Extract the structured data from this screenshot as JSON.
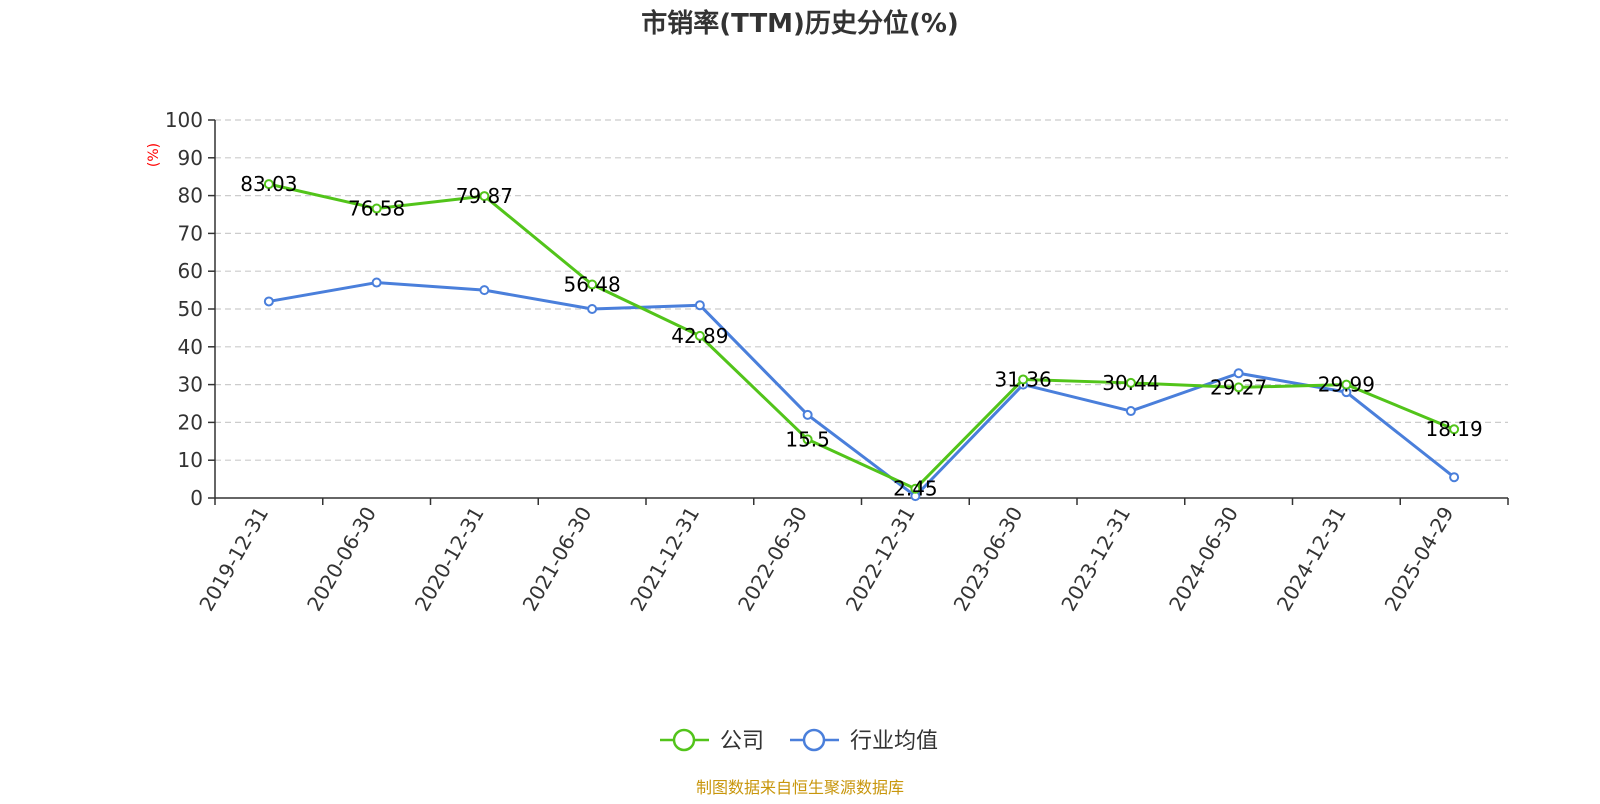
{
  "chart_data": {
    "type": "line",
    "title": "市销率(TTM)历史分位(%)",
    "ylabel": "(%)",
    "ylim": [
      0,
      100
    ],
    "y_ticks": [
      "0",
      "10",
      "20",
      "30",
      "40",
      "50",
      "60",
      "70",
      "80",
      "90",
      "100"
    ],
    "categories": [
      "2019-12-31",
      "2020-06-30",
      "2020-12-31",
      "2021-06-30",
      "2021-12-31",
      "2022-06-30",
      "2022-12-31",
      "2023-06-30",
      "2023-12-31",
      "2024-06-30",
      "2024-12-31",
      "2025-04-29"
    ],
    "grid": "horizontal dashed",
    "legend_position": "bottom-center",
    "series": [
      {
        "name": "公司",
        "color": "#52c41a",
        "values": [
          83.03,
          76.58,
          79.87,
          56.48,
          42.89,
          15.5,
          2.45,
          31.36,
          30.44,
          29.27,
          29.99,
          18.19
        ],
        "labels": [
          "83.03",
          "76.58",
          "79.87",
          "56.48",
          "42.89",
          "15.5",
          "2.45",
          "31.36",
          "30.44",
          "29.27",
          "29.99",
          "18.19"
        ]
      },
      {
        "name": "行业均值",
        "color": "#4a7fdb",
        "values": [
          52,
          57,
          55,
          50,
          51,
          22,
          0.5,
          30,
          23,
          33,
          28,
          5.5
        ]
      }
    ]
  },
  "footer": {
    "source": "制图数据来自恒生聚源数据库"
  }
}
